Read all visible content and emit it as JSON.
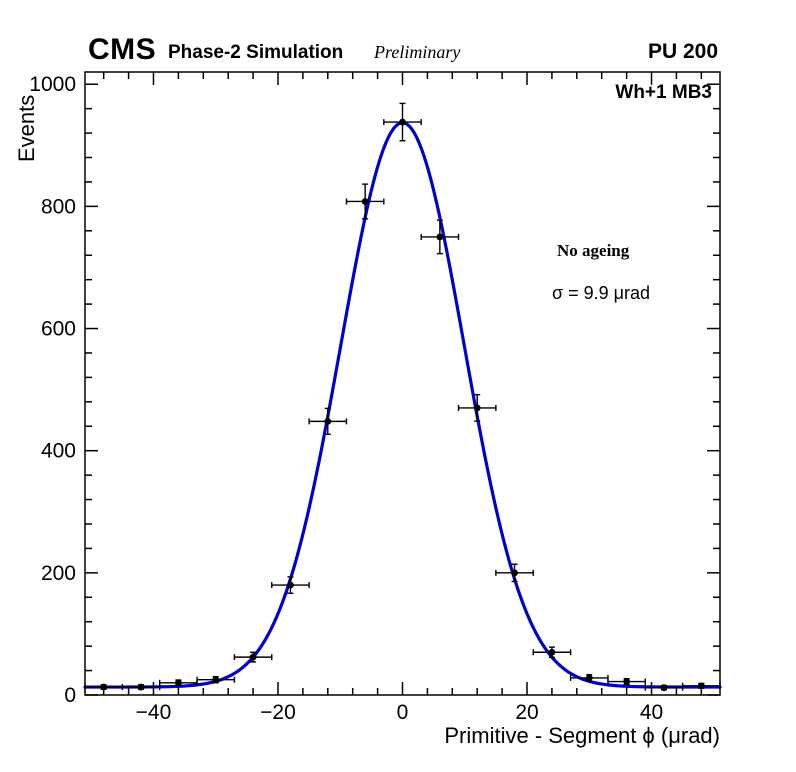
{
  "header": {
    "cms": "CMS",
    "subtitle": "Phase-2 Simulation",
    "preliminary": "Preliminary",
    "pileup": "PU 200"
  },
  "annotations": {
    "chamber": "Wh+1 MB3",
    "ageing": "No ageing",
    "sigma_text": "σ = 9.9 μrad"
  },
  "chart_data": {
    "type": "scatter",
    "title": "",
    "xlabel": "Primitive - Segment ϕ (μrad)",
    "ylabel": "Events",
    "xlim": [
      -51,
      51
    ],
    "ylim": [
      0,
      1020
    ],
    "x_ticks": [
      -40,
      -20,
      0,
      20,
      40
    ],
    "x_tick_labels": [
      "−40",
      "−20",
      "0",
      "20",
      "40"
    ],
    "y_ticks": [
      0,
      200,
      400,
      600,
      800,
      1000
    ],
    "y_tick_labels": [
      "0",
      "200",
      "400",
      "600",
      "800",
      "1000"
    ],
    "x_minor_step": 4,
    "y_minor_step": 40,
    "bin_half_width": 3,
    "grid": false,
    "legend": "none",
    "axis_color": "#000000",
    "marker_color": "#000000",
    "points": [
      {
        "x": -48,
        "y": 13,
        "ey": 3.6
      },
      {
        "x": -42,
        "y": 13,
        "ey": 3.6
      },
      {
        "x": -36,
        "y": 20,
        "ey": 4.5
      },
      {
        "x": -30,
        "y": 25,
        "ey": 5.0
      },
      {
        "x": -24,
        "y": 62,
        "ey": 7.9
      },
      {
        "x": -18,
        "y": 180,
        "ey": 13.4
      },
      {
        "x": -12,
        "y": 448,
        "ey": 21.2
      },
      {
        "x": -6,
        "y": 808,
        "ey": 28.4
      },
      {
        "x": 0,
        "y": 938,
        "ey": 30.6
      },
      {
        "x": 6,
        "y": 750,
        "ey": 27.4
      },
      {
        "x": 12,
        "y": 470,
        "ey": 21.7
      },
      {
        "x": 18,
        "y": 200,
        "ey": 14.1
      },
      {
        "x": 24,
        "y": 70,
        "ey": 8.4
      },
      {
        "x": 30,
        "y": 28,
        "ey": 5.3
      },
      {
        "x": 36,
        "y": 22,
        "ey": 4.7
      },
      {
        "x": 42,
        "y": 12,
        "ey": 3.5
      },
      {
        "x": 48,
        "y": 15,
        "ey": 3.9
      }
    ],
    "fit": {
      "shape": "gaussian",
      "amplitude": 924,
      "mean": 0,
      "sigma": 9.9,
      "offset": 13,
      "color": "#0000cd",
      "label": "σ = 9.9 μrad"
    }
  }
}
